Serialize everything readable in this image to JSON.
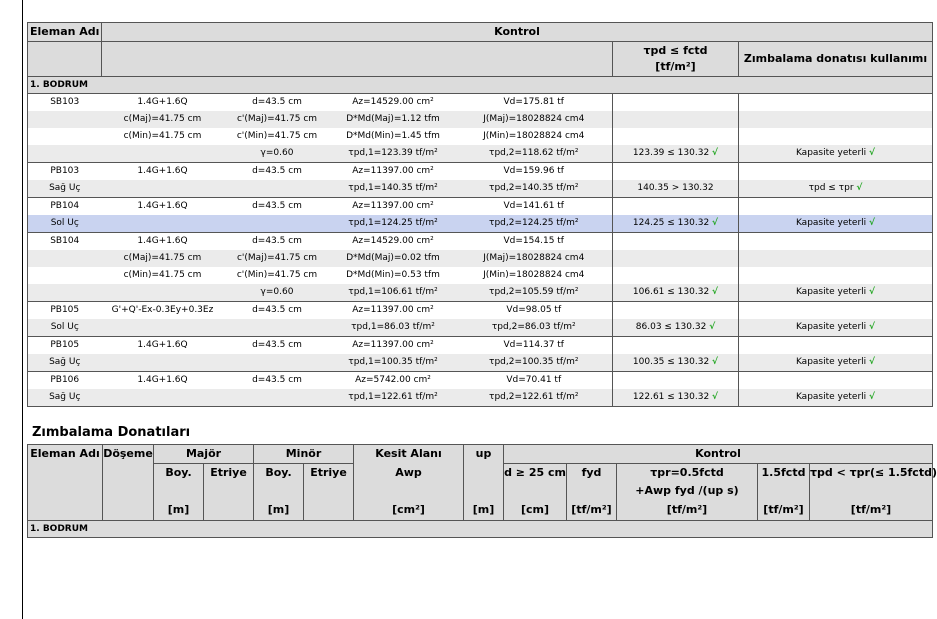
{
  "table1": {
    "header": {
      "eleman_adi": "Eleman Adı",
      "kontrol": "Kontrol",
      "tau_check": "τpd ≤ fctd",
      "tau_unit": "[tf/m²]",
      "zimbalama": "Zımbalama donatısı kullanımı"
    },
    "group": "1. BODRUM",
    "rows": [
      {
        "c1": "SB103",
        "c2": "1.4G+1.6Q",
        "c3": "d=43.5 cm",
        "c4": "Az=14529.00 cm²",
        "c5": "Vd=175.81 tf",
        "c6": "",
        "c7": "",
        "cls": ""
      },
      {
        "c1": "",
        "c2": "c(Maj)=41.75 cm",
        "c3": "c'(Maj)=41.75 cm",
        "c4": "D*Md(Maj)=1.12 tfm",
        "c5": "J(Maj)=18028824 cm4",
        "c6": "",
        "c7": "",
        "cls": "alt"
      },
      {
        "c1": "",
        "c2": "c(Min)=41.75 cm",
        "c3": "c'(Min)=41.75 cm",
        "c4": "D*Md(Min)=1.45 tfm",
        "c5": "J(Min)=18028824 cm4",
        "c6": "",
        "c7": "",
        "cls": ""
      },
      {
        "c1": "",
        "c2": "",
        "c3": "γ=0.60",
        "c4": "τpd,1=123.39 tf/m²",
        "c5": "τpd,2=118.62 tf/m²",
        "c6": "123.39 ≤ 130.32",
        "c6chk": "√",
        "c7": "Kapasite yeterli",
        "c7chk": "√",
        "cls": "alt end"
      },
      {
        "c1": "PB103",
        "c2": "1.4G+1.6Q",
        "c3": "d=43.5 cm",
        "c4": "Az=11397.00 cm²",
        "c5": "Vd=159.96 tf",
        "c6": "",
        "c7": "",
        "cls": ""
      },
      {
        "c1": "Sağ Uç",
        "c2": "",
        "c3": "",
        "c4": "τpd,1=140.35 tf/m²",
        "c5": "τpd,2=140.35 tf/m²",
        "c6": "140.35 > 130.32",
        "c7": "τpd ≤ τpr",
        "c7chk": "√",
        "cls": "alt end"
      },
      {
        "c1": "PB104",
        "c2": "1.4G+1.6Q",
        "c3": "d=43.5 cm",
        "c4": "Az=11397.00 cm²",
        "c5": "Vd=141.61 tf",
        "c6": "",
        "c7": "",
        "cls": ""
      },
      {
        "c1": "Sol Uç",
        "c2": "",
        "c3": "",
        "c4": "τpd,1=124.25 tf/m²",
        "c5": "τpd,2=124.25 tf/m²",
        "c6": "124.25 ≤ 130.32",
        "c6chk": "√",
        "c7": "Kapasite yeterli",
        "c7chk": "√",
        "cls": "sel end"
      },
      {
        "c1": "SB104",
        "c2": "1.4G+1.6Q",
        "c3": "d=43.5 cm",
        "c4": "Az=14529.00 cm²",
        "c5": "Vd=154.15 tf",
        "c6": "",
        "c7": "",
        "cls": ""
      },
      {
        "c1": "",
        "c2": "c(Maj)=41.75 cm",
        "c3": "c'(Maj)=41.75 cm",
        "c4": "D*Md(Maj)=0.02 tfm",
        "c5": "J(Maj)=18028824 cm4",
        "c6": "",
        "c7": "",
        "cls": "alt"
      },
      {
        "c1": "",
        "c2": "c(Min)=41.75 cm",
        "c3": "c'(Min)=41.75 cm",
        "c4": "D*Md(Min)=0.53 tfm",
        "c5": "J(Min)=18028824 cm4",
        "c6": "",
        "c7": "",
        "cls": ""
      },
      {
        "c1": "",
        "c2": "",
        "c3": "γ=0.60",
        "c4": "τpd,1=106.61 tf/m²",
        "c5": "τpd,2=105.59 tf/m²",
        "c6": "106.61 ≤ 130.32",
        "c6chk": "√",
        "c7": "Kapasite yeterli",
        "c7chk": "√",
        "cls": "alt end"
      },
      {
        "c1": "PB105",
        "c2": "G'+Q'-Ex-0.3Ey+0.3Ez",
        "c3": "d=43.5 cm",
        "c4": "Az=11397.00 cm²",
        "c5": "Vd=98.05 tf",
        "c6": "",
        "c7": "",
        "cls": ""
      },
      {
        "c1": "Sol Uç",
        "c2": "",
        "c3": "",
        "c4": "τpd,1=86.03 tf/m²",
        "c5": "τpd,2=86.03 tf/m²",
        "c6": "86.03 ≤ 130.32",
        "c6chk": "√",
        "c7": "Kapasite yeterli",
        "c7chk": "√",
        "cls": "alt end"
      },
      {
        "c1": "PB105",
        "c2": "1.4G+1.6Q",
        "c3": "d=43.5 cm",
        "c4": "Az=11397.00 cm²",
        "c5": "Vd=114.37 tf",
        "c6": "",
        "c7": "",
        "cls": ""
      },
      {
        "c1": "Sağ Uç",
        "c2": "",
        "c3": "",
        "c4": "τpd,1=100.35 tf/m²",
        "c5": "τpd,2=100.35 tf/m²",
        "c6": "100.35 ≤ 130.32",
        "c6chk": "√",
        "c7": "Kapasite yeterli",
        "c7chk": "√",
        "cls": "alt end"
      },
      {
        "c1": "PB106",
        "c2": "1.4G+1.6Q",
        "c3": "d=43.5 cm",
        "c4": "Az=5742.00 cm²",
        "c5": "Vd=70.41 tf",
        "c6": "",
        "c7": "",
        "cls": ""
      },
      {
        "c1": "Sağ Uç",
        "c2": "",
        "c3": "",
        "c4": "τpd,1=122.61 tf/m²",
        "c5": "τpd,2=122.61 tf/m²",
        "c6": "122.61 ≤ 130.32",
        "c6chk": "√",
        "c7": "Kapasite yeterli",
        "c7chk": "√",
        "cls": "alt end"
      }
    ]
  },
  "table2": {
    "title": "Zımbalama Donatıları",
    "header": {
      "eleman_adi": "Eleman Adı",
      "doseme": "Döşeme",
      "major": "Majör",
      "minor": "Minör",
      "kesit_alani": "Kesit Alanı",
      "up": "up",
      "kontrol": "Kontrol",
      "boy": "Boy.",
      "etriye": "Etriye",
      "awp": "Awp",
      "d_check": "d ≥ 25 cm",
      "fyd": "fyd",
      "tpr_line1": "τpr=0.5fctd",
      "tpr_line2": "+Awp fyd /(up s)",
      "fctd15": "1.5fctd",
      "tpd_check": "τpd < τpr(≤ 1.5fctd)",
      "unit_m": "[m]",
      "unit_cm2": "[cm²]",
      "unit_cm": "[cm]",
      "unit_tfm2": "[tf/m²]"
    },
    "group": "1. BODRUM"
  }
}
